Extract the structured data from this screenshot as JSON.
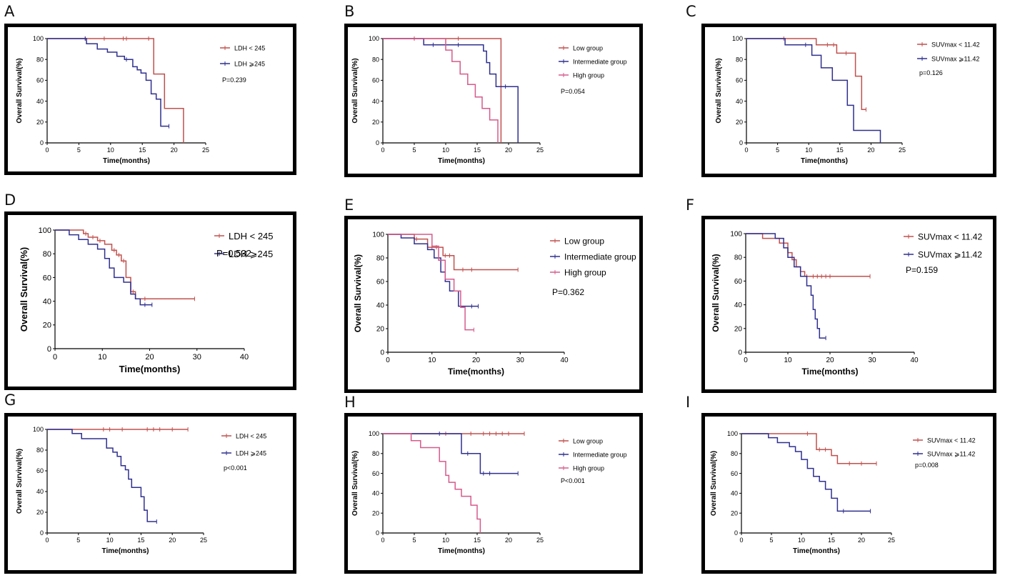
{
  "figure": {
    "panel_labels": [
      "A",
      "B",
      "C",
      "D",
      "E",
      "F",
      "G",
      "H",
      "I"
    ]
  },
  "chart_data": [
    {
      "type": "line",
      "panel": "A",
      "xlabel": "Time(months)",
      "ylabel": "Overall Survival(%)",
      "xlim": [
        0,
        25
      ],
      "ylim": [
        0,
        100
      ],
      "xticks": [
        "0",
        "5",
        "10",
        "15",
        "20",
        "25"
      ],
      "yticks": [
        "0",
        "20",
        "40",
        "60",
        "80",
        "100"
      ],
      "pvalue": "P=0.239",
      "series": [
        {
          "name": "LDH < 245",
          "color": "#c0504d",
          "x": [
            0,
            16.8,
            16.8,
            18.5,
            18.5,
            21.5,
            21.5
          ],
          "y": [
            100,
            100,
            66,
            66,
            33,
            33,
            0
          ],
          "censor_x": [
            6,
            9,
            12,
            12.5,
            16
          ]
        },
        {
          "name": "LDH ⩾245",
          "color": "#2f2f8f",
          "x": [
            0,
            6.2,
            6.2,
            7.9,
            7.9,
            9.5,
            9.5,
            11,
            11,
            12.2,
            12.2,
            13.5,
            13.5,
            14.2,
            14.2,
            14.8,
            14.8,
            15.6,
            15.6,
            16.4,
            16.4,
            17.2,
            17.2,
            17.9,
            17.9,
            18.4,
            18.4,
            19.2
          ],
          "y": [
            100,
            100,
            95,
            95,
            90,
            90,
            87,
            87,
            83,
            83,
            80,
            80,
            73,
            73,
            70,
            70,
            67,
            67,
            60,
            60,
            47,
            47,
            42,
            42,
            16,
            16,
            16,
            16
          ],
          "censor_x": [
            6,
            12.5,
            19.2
          ]
        }
      ]
    },
    {
      "type": "line",
      "panel": "B",
      "xlabel": "Time(months)",
      "ylabel": "Overall Survival(%)",
      "xlim": [
        0,
        25
      ],
      "ylim": [
        0,
        100
      ],
      "xticks": [
        "0",
        "5",
        "10",
        "15",
        "20",
        "25"
      ],
      "yticks": [
        "0",
        "20",
        "40",
        "60",
        "80",
        "100"
      ],
      "pvalue": "P=0.054",
      "series": [
        {
          "name": "Low group",
          "color": "#c0504d",
          "x": [
            0,
            18.8,
            18.8
          ],
          "y": [
            100,
            100,
            0
          ],
          "censor_x": [
            5,
            12
          ]
        },
        {
          "name": "Intermediate group",
          "color": "#2f2f8f",
          "x": [
            0,
            6.5,
            6.5,
            16,
            16,
            16.5,
            16.5,
            17,
            17,
            18,
            18,
            21.5,
            21.5
          ],
          "y": [
            100,
            100,
            94,
            94,
            88,
            88,
            77,
            77,
            66,
            66,
            54,
            54,
            0
          ],
          "censor_x": [
            8,
            10,
            12,
            19.5
          ]
        },
        {
          "name": "High group",
          "color": "#d65a8a",
          "x": [
            0,
            10,
            10,
            11,
            11,
            12.3,
            12.3,
            13.5,
            13.5,
            14.7,
            14.7,
            15.8,
            15.8,
            17,
            17,
            18.3,
            18.3
          ],
          "y": [
            100,
            100,
            89,
            89,
            78,
            78,
            66,
            66,
            56,
            56,
            44,
            44,
            33,
            33,
            22,
            22,
            0
          ],
          "censor_x": []
        }
      ]
    },
    {
      "type": "line",
      "panel": "C",
      "xlabel": "Time(months)",
      "ylabel": "Overall Survival(%)",
      "xlim": [
        0,
        25
      ],
      "ylim": [
        0,
        100
      ],
      "xticks": [
        "0",
        "5",
        "10",
        "15",
        "20",
        "25"
      ],
      "yticks": [
        "0",
        "20",
        "40",
        "60",
        "80",
        "100"
      ],
      "pvalue": "p=0.126",
      "series": [
        {
          "name": "SUVmax < 11.42",
          "color": "#c0504d",
          "x": [
            0,
            11.2,
            11.2,
            14.5,
            14.5,
            17.5,
            17.5,
            18.5,
            18.5,
            19.2
          ],
          "y": [
            100,
            100,
            94,
            94,
            86,
            86,
            64,
            64,
            32,
            32
          ],
          "censor_x": [
            6,
            13,
            14,
            16,
            19.2
          ]
        },
        {
          "name": "SUVmax ⩾11.42",
          "color": "#2f2f8f",
          "x": [
            0,
            6.2,
            6.2,
            10.5,
            10.5,
            12,
            12,
            13.8,
            13.8,
            16.2,
            16.2,
            17.2,
            17.2,
            18.3,
            18.3,
            21.5,
            21.5
          ],
          "y": [
            100,
            100,
            94,
            94,
            84,
            84,
            72,
            72,
            60,
            60,
            36,
            36,
            12,
            12,
            12,
            12,
            0
          ],
          "censor_x": [
            9.5
          ]
        }
      ]
    },
    {
      "type": "line",
      "panel": "D",
      "xlabel": "Time(months)",
      "ylabel": "Overall Survival(%)",
      "xlim": [
        0,
        40
      ],
      "ylim": [
        0,
        100
      ],
      "xticks": [
        "0",
        "10",
        "20",
        "30",
        "40"
      ],
      "yticks": [
        "0",
        "20",
        "40",
        "60",
        "80",
        "100"
      ],
      "pvalue": "P=0.532",
      "series": [
        {
          "name": "LDH < 245",
          "color": "#c0504d",
          "x": [
            0,
            6,
            6,
            7,
            7,
            9,
            9,
            10.5,
            10.5,
            12,
            12,
            13,
            13,
            14,
            14,
            15,
            15,
            16,
            16,
            17,
            17,
            29.5
          ],
          "y": [
            100,
            100,
            97,
            97,
            94,
            94,
            91,
            91,
            88,
            88,
            83,
            83,
            79,
            79,
            74,
            74,
            60,
            60,
            48,
            48,
            42,
            42
          ],
          "censor_x": [
            6.5,
            8,
            9.5,
            12.5,
            13.5,
            14.5,
            16.5,
            19,
            29.5
          ]
        },
        {
          "name": "LDH ⩾245",
          "color": "#2f2f8f",
          "x": [
            0,
            3,
            3,
            5,
            5,
            7,
            7,
            9,
            9,
            10.5,
            10.5,
            11.5,
            11.5,
            12.5,
            12.5,
            14.5,
            14.5,
            16,
            16,
            17,
            17,
            18,
            18,
            20.5
          ],
          "y": [
            100,
            100,
            96,
            96,
            92,
            92,
            88,
            88,
            84,
            84,
            76,
            76,
            68,
            68,
            60,
            60,
            56,
            56,
            46,
            46,
            42,
            42,
            37,
            37
          ],
          "censor_x": [
            19,
            20.5
          ]
        }
      ]
    },
    {
      "type": "line",
      "panel": "E",
      "xlabel": "Time(months)",
      "ylabel": "Overall Survival(%)",
      "xlim": [
        0,
        40
      ],
      "ylim": [
        0,
        100
      ],
      "xticks": [
        "0",
        "10",
        "20",
        "30",
        "40"
      ],
      "yticks": [
        "0",
        "20",
        "40",
        "60",
        "80",
        "100"
      ],
      "pvalue": "P=0.362",
      "series": [
        {
          "name": "Low group",
          "color": "#c0504d",
          "x": [
            0,
            6,
            6,
            9,
            9,
            12.5,
            12.5,
            15,
            15,
            29.5
          ],
          "y": [
            100,
            100,
            96,
            96,
            89,
            89,
            82,
            82,
            70,
            70
          ],
          "censor_x": [
            6.5,
            10,
            11,
            13,
            14,
            17,
            19,
            29.5
          ]
        },
        {
          "name": "Intermediate group",
          "color": "#2f2f8f",
          "x": [
            0,
            3,
            3,
            6,
            6,
            9,
            9,
            10.5,
            10.5,
            12,
            12,
            13,
            13,
            14,
            14,
            16,
            16,
            17,
            17,
            20.5
          ],
          "y": [
            100,
            100,
            97,
            97,
            92,
            92,
            87,
            87,
            80,
            80,
            68,
            68,
            60,
            60,
            52,
            52,
            39,
            39,
            39,
            39
          ],
          "censor_x": [
            19,
            20.5
          ]
        },
        {
          "name": "High group",
          "color": "#d65a8a",
          "x": [
            0,
            10,
            10,
            11.5,
            11.5,
            13,
            13,
            15,
            15,
            16.5,
            16.5,
            17.5,
            17.5,
            19.5
          ],
          "y": [
            100,
            100,
            90,
            90,
            78,
            78,
            62,
            62,
            52,
            52,
            38,
            38,
            19,
            19
          ],
          "censor_x": [
            19.5
          ]
        }
      ]
    },
    {
      "type": "line",
      "panel": "F",
      "xlabel": "Time(months)",
      "ylabel": "Overall Survival(%)",
      "xlim": [
        0,
        40
      ],
      "ylim": [
        0,
        100
      ],
      "xticks": [
        "0",
        "10",
        "20",
        "30",
        "40"
      ],
      "yticks": [
        "0",
        "20",
        "40",
        "60",
        "80",
        "100"
      ],
      "pvalue": "P=0.159",
      "series": [
        {
          "name": "SUVmax < 11.42",
          "color": "#c0504d",
          "x": [
            0,
            4,
            4,
            8,
            8,
            10,
            10,
            11,
            11,
            12,
            12,
            13,
            13,
            14,
            14,
            29.5
          ],
          "y": [
            100,
            100,
            96,
            96,
            92,
            92,
            84,
            84,
            78,
            78,
            72,
            72,
            68,
            68,
            64,
            64
          ],
          "censor_x": [
            14.5,
            16,
            17,
            18,
            19,
            20,
            29.5
          ]
        },
        {
          "name": "SUVmax ⩾11.42",
          "color": "#2f2f8f",
          "x": [
            0,
            7,
            7,
            9,
            9,
            10,
            10,
            11.5,
            11.5,
            13,
            13,
            14.5,
            14.5,
            15.5,
            15.5,
            16,
            16,
            16.5,
            16.5,
            17,
            17,
            17.5,
            17.5,
            19
          ],
          "y": [
            100,
            100,
            96,
            96,
            88,
            88,
            80,
            80,
            72,
            72,
            64,
            64,
            56,
            56,
            48,
            48,
            36,
            36,
            28,
            28,
            20,
            20,
            12,
            12
          ],
          "censor_x": [
            19
          ]
        }
      ]
    },
    {
      "type": "line",
      "panel": "G",
      "xlabel": "Time(months)",
      "ylabel": "Overall Survival(%)",
      "xlim": [
        0,
        25
      ],
      "ylim": [
        0,
        100
      ],
      "xticks": [
        "0",
        "5",
        "10",
        "15",
        "20",
        "25"
      ],
      "yticks": [
        "0",
        "20",
        "40",
        "60",
        "80",
        "100"
      ],
      "pvalue": "p<0.001",
      "series": [
        {
          "name": "LDH < 245",
          "color": "#c0504d",
          "x": [
            0,
            22.5
          ],
          "y": [
            100,
            100
          ],
          "censor_x": [
            9,
            10,
            12,
            16,
            17,
            18,
            20,
            22.5
          ]
        },
        {
          "name": "LDH ⩾245",
          "color": "#2f2f8f",
          "x": [
            0,
            4,
            4,
            5.5,
            5.5,
            9.5,
            9.5,
            10.5,
            10.5,
            11.2,
            11.2,
            11.8,
            11.8,
            12.5,
            12.5,
            13,
            13,
            13.5,
            13.5,
            15,
            15,
            15.5,
            15.5,
            16,
            16,
            17.5
          ],
          "y": [
            100,
            100,
            96,
            96,
            91,
            91,
            82,
            82,
            78,
            78,
            74,
            74,
            65,
            65,
            61,
            61,
            52,
            52,
            44,
            44,
            35,
            35,
            22,
            22,
            11,
            11
          ],
          "censor_x": [
            17.5
          ]
        }
      ]
    },
    {
      "type": "line",
      "panel": "H",
      "xlabel": "Time(months)",
      "ylabel": "Overall Survival(%)",
      "xlim": [
        0,
        25
      ],
      "ylim": [
        0,
        100
      ],
      "xticks": [
        "0",
        "5",
        "10",
        "15",
        "20",
        "25"
      ],
      "yticks": [
        "0",
        "20",
        "40",
        "60",
        "80",
        "100"
      ],
      "pvalue": "P<0.001",
      "series": [
        {
          "name": "Low group",
          "color": "#c0504d",
          "x": [
            0,
            22.5
          ],
          "y": [
            100,
            100
          ],
          "censor_x": [
            10,
            14,
            16,
            17,
            18,
            19,
            20,
            22.5
          ]
        },
        {
          "name": "Intermediate group",
          "color": "#2f2f8f",
          "x": [
            0,
            12.5,
            12.5,
            15.5,
            15.5,
            21.5
          ],
          "y": [
            100,
            100,
            80,
            80,
            60,
            60
          ],
          "censor_x": [
            9,
            13.5,
            16,
            17,
            21.5
          ]
        },
        {
          "name": "High group",
          "color": "#d65a8a",
          "x": [
            0,
            4.5,
            4.5,
            6,
            6,
            9,
            9,
            10,
            10,
            10.5,
            10.5,
            11.5,
            11.5,
            12.5,
            12.5,
            14,
            14,
            15,
            15,
            15.5,
            15.5
          ],
          "y": [
            100,
            100,
            93,
            93,
            86,
            86,
            72,
            72,
            58,
            58,
            51,
            51,
            44,
            44,
            37,
            37,
            28,
            28,
            14,
            14,
            0
          ],
          "censor_x": []
        }
      ]
    },
    {
      "type": "line",
      "panel": "I",
      "xlabel": "Time(months)",
      "ylabel": "Overall Survival(%)",
      "xlim": [
        0,
        25
      ],
      "ylim": [
        0,
        100
      ],
      "xticks": [
        "0",
        "5",
        "10",
        "15",
        "20",
        "25"
      ],
      "yticks": [
        "0",
        "20",
        "40",
        "60",
        "80",
        "100"
      ],
      "pvalue": "p=0.008",
      "series": [
        {
          "name": "SUVmax < 11.42",
          "color": "#c0504d",
          "x": [
            0,
            12.5,
            12.5,
            15,
            15,
            16,
            16,
            22.5
          ],
          "y": [
            100,
            100,
            84,
            84,
            78,
            78,
            70,
            70
          ],
          "censor_x": [
            11,
            13,
            14,
            18,
            20,
            22.5
          ]
        },
        {
          "name": "SUVmax ⩾11.42",
          "color": "#2f2f8f",
          "x": [
            0,
            4.5,
            4.5,
            6,
            6,
            8,
            8,
            9,
            9,
            10,
            10,
            11,
            11,
            12,
            12,
            13,
            13,
            14,
            14,
            15,
            15,
            16,
            16,
            21.5
          ],
          "y": [
            100,
            100,
            96,
            96,
            91,
            91,
            87,
            87,
            82,
            82,
            74,
            74,
            65,
            65,
            57,
            57,
            52,
            52,
            44,
            44,
            35,
            35,
            22,
            22
          ],
          "censor_x": [
            17,
            21.5
          ]
        }
      ]
    }
  ]
}
